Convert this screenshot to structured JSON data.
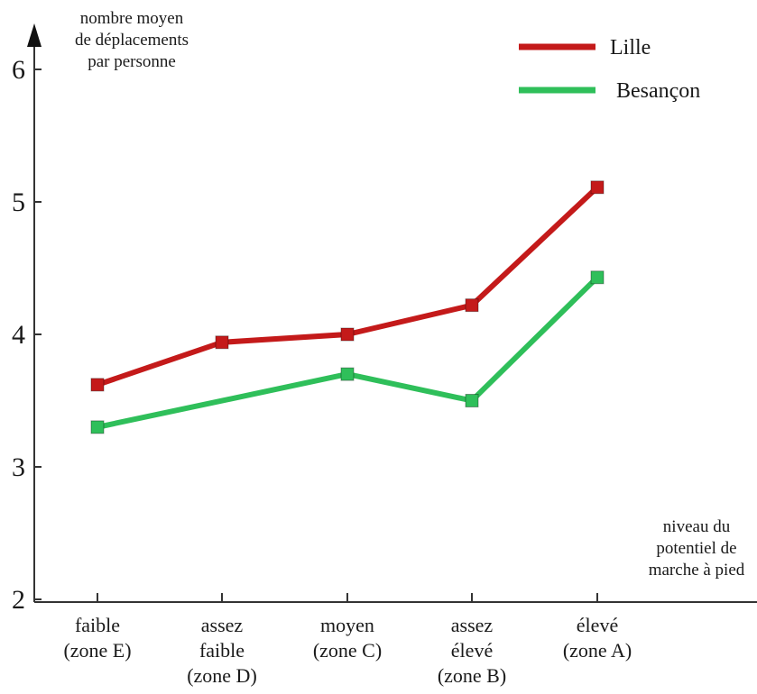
{
  "chart_data": {
    "type": "line",
    "ylabel": [
      "nombre moyen",
      "de déplacements",
      "par personne"
    ],
    "xlabel": [
      "niveau du",
      "potentiel de",
      "marche à pied"
    ],
    "ylim": [
      2,
      6
    ],
    "yticks": [
      "2",
      "3",
      "4",
      "5",
      "6"
    ],
    "categories": [
      [
        "faible",
        "(zone E)"
      ],
      [
        "assez",
        "faible",
        "(zone D)"
      ],
      [
        "moyen",
        "(zone C)"
      ],
      [
        "assez",
        "élevé",
        "(zone B)"
      ],
      [
        "élevé",
        "(zone A)"
      ]
    ],
    "series": [
      {
        "name": "Lille",
        "color": "#c41a1a",
        "values": [
          3.62,
          3.94,
          4.0,
          4.22,
          5.11
        ]
      },
      {
        "name": "Besançon",
        "color": "#2fbf5a",
        "values": [
          3.3,
          null,
          3.7,
          3.5,
          4.43
        ]
      }
    ],
    "legend_position": "top-right",
    "grid": false
  }
}
